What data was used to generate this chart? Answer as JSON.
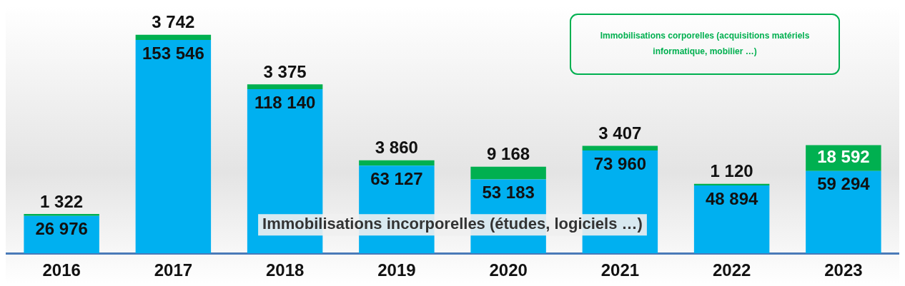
{
  "chart_data": {
    "type": "bar",
    "stacked": true,
    "data_labels": true,
    "categories": [
      "2016",
      "2017",
      "2018",
      "2019",
      "2020",
      "2021",
      "2022",
      "2023"
    ],
    "series": [
      {
        "name": "Immobilisations incorporelles (études, logiciels …)",
        "color": "#00b0f0",
        "values": [
          26976,
          153546,
          118140,
          63127,
          53183,
          73960,
          48894,
          59294
        ]
      },
      {
        "name": "Immobilisations corporelles (acquisitions matériels informatique, mobilier …)",
        "color": "#00b050",
        "values": [
          1322,
          3742,
          3375,
          3860,
          9168,
          3407,
          1120,
          18592
        ]
      }
    ]
  }
}
